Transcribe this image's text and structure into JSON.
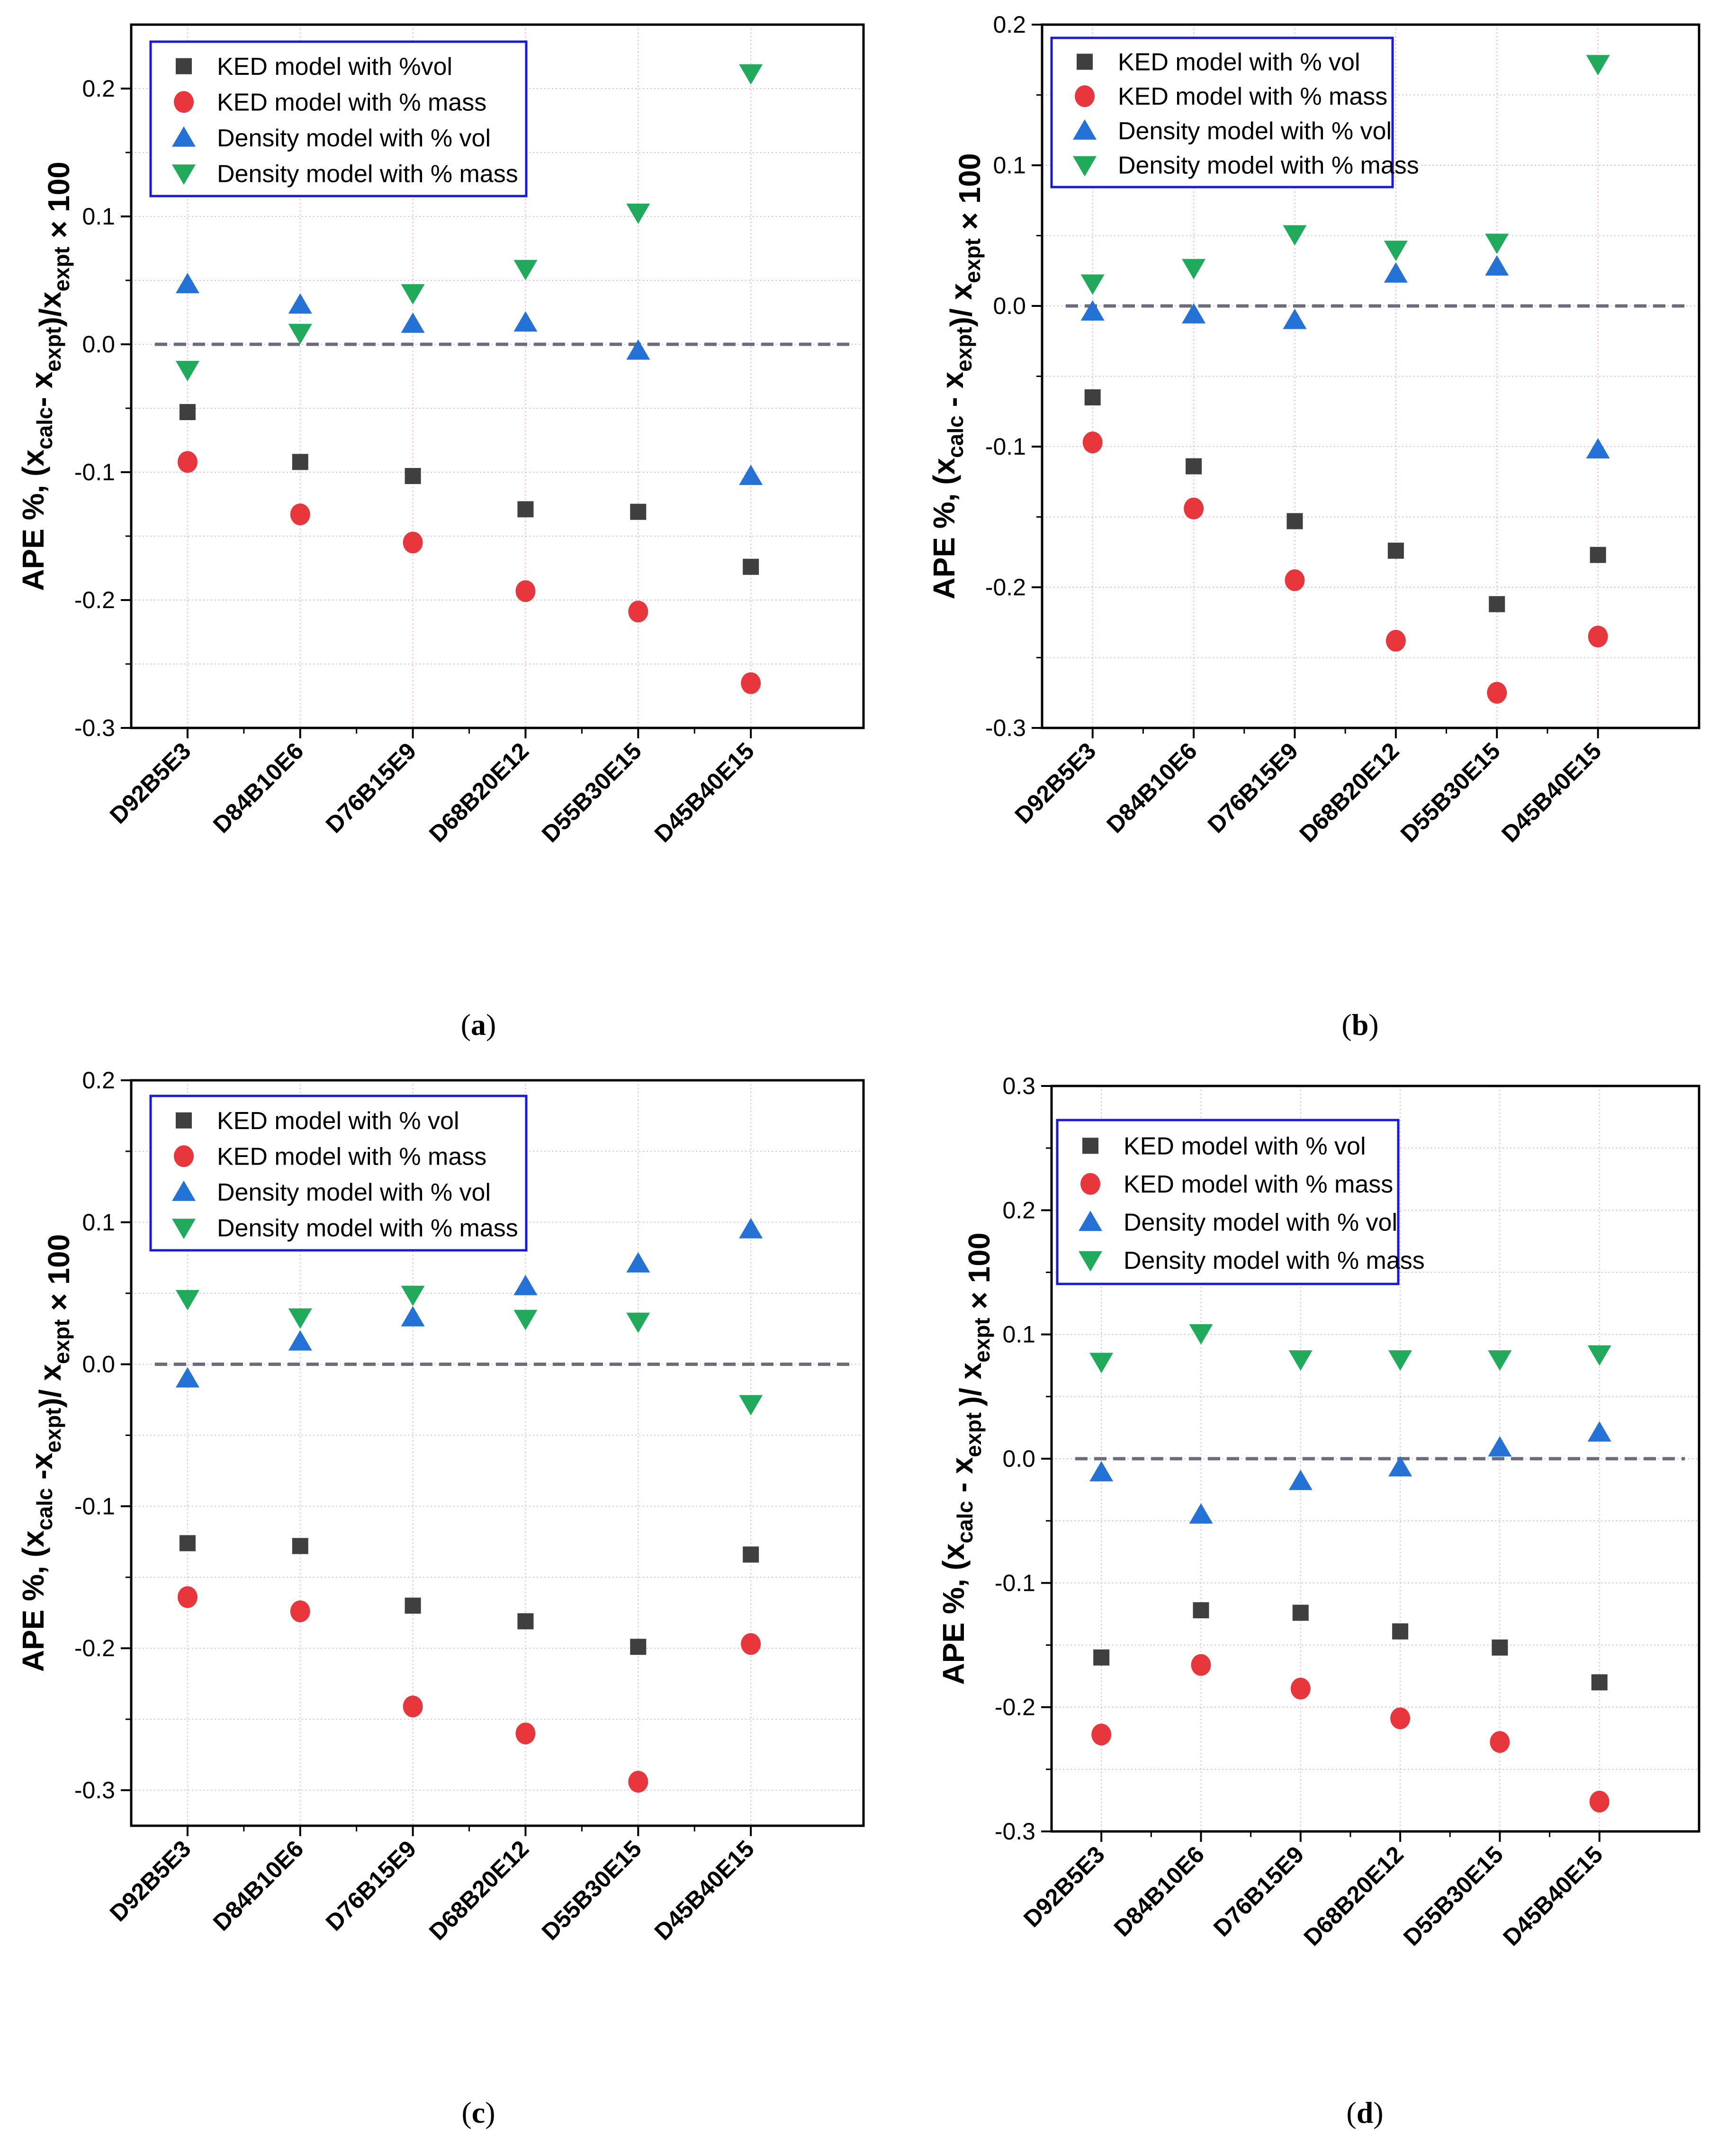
{
  "chart_data": [
    {
      "panel": "(a)",
      "type": "scatter",
      "categories": [
        "D92B5E3",
        "D84B10E6",
        "D76B15E9",
        "D68B20E12",
        "D55B30E15",
        "D45B40E15"
      ],
      "ylim": [
        -0.3,
        0.25
      ],
      "yticks": [
        -0.3,
        -0.2,
        -0.1,
        0.0,
        0.1,
        0.2
      ],
      "ytick_labels": [
        "-0.3",
        "-0.2",
        "-0.1",
        "0.0",
        "0.1",
        "0.2"
      ],
      "ylabel_parts": [
        "APE %, (",
        "x",
        "calc",
        "- ",
        "x",
        "expt",
        ")/",
        "x",
        "expt",
        " × 100"
      ],
      "legend_location": "top-left",
      "series": [
        {
          "name": "KED model with %vol",
          "marker": "square",
          "color": "#3f3f3f",
          "values": [
            -0.053,
            -0.092,
            -0.103,
            -0.129,
            -0.131,
            -0.174
          ]
        },
        {
          "name": "KED model with % mass",
          "marker": "circle",
          "color": "#e8373c",
          "values": [
            -0.092,
            -0.133,
            -0.155,
            -0.193,
            -0.209,
            -0.265
          ]
        },
        {
          "name": "Density model with % vol",
          "marker": "triangle-up",
          "color": "#2472d6",
          "values": [
            0.047,
            0.031,
            0.016,
            0.017,
            -0.005,
            -0.103
          ]
        },
        {
          "name": "Density model with % mass",
          "marker": "triangle-down",
          "color": "#22aa5c",
          "values": [
            -0.02,
            0.009,
            0.04,
            0.059,
            0.103,
            0.212
          ]
        }
      ]
    },
    {
      "panel": "(b)",
      "type": "scatter",
      "categories": [
        "D92B5E3",
        "D84B10E6",
        "D76B15E9",
        "D68B20E12",
        "D55B30E15",
        "D45B40E15"
      ],
      "ylim": [
        -0.3,
        0.2
      ],
      "yticks": [
        -0.3,
        -0.2,
        -0.1,
        0.0,
        0.1,
        0.2
      ],
      "ytick_labels": [
        "-0.3",
        "-0.2",
        "-0.1",
        "0.0",
        "0.1",
        "0.2"
      ],
      "ylabel_parts": [
        "APE %, (",
        "x",
        "calc",
        " - ",
        "x",
        "expt",
        ")/ ",
        "x",
        "expt",
        " × 100"
      ],
      "legend_location": "top-left",
      "series": [
        {
          "name": "KED model with % vol",
          "marker": "square",
          "color": "#3f3f3f",
          "values": [
            -0.065,
            -0.114,
            -0.153,
            -0.174,
            -0.212,
            -0.177
          ]
        },
        {
          "name": "KED model with % mass",
          "marker": "circle",
          "color": "#e8373c",
          "values": [
            -0.097,
            -0.144,
            -0.195,
            -0.238,
            -0.275,
            -0.235
          ]
        },
        {
          "name": "Density model with % vol",
          "marker": "triangle-up",
          "color": "#2472d6",
          "values": [
            -0.004,
            -0.006,
            -0.01,
            0.023,
            0.028,
            -0.102
          ]
        },
        {
          "name": "Density model with % mass",
          "marker": "triangle-down",
          "color": "#22aa5c",
          "values": [
            0.016,
            0.027,
            0.051,
            0.04,
            0.045,
            0.172
          ]
        }
      ]
    },
    {
      "panel": "(c)",
      "type": "scatter",
      "categories": [
        "D92B5E3",
        "D84B10E6",
        "D76B15E9",
        "D68B20E12",
        "D55B30E15",
        "D45B40E15"
      ],
      "ylim": [
        -0.325,
        0.2
      ],
      "yticks": [
        -0.3,
        -0.2,
        -0.1,
        0.0,
        0.1,
        0.2
      ],
      "ytick_labels": [
        "-0.3",
        "-0.2",
        "-0.1",
        "0.0",
        "0.1",
        "0.2"
      ],
      "ylabel_parts": [
        "APE %, (",
        "x",
        "calc",
        " -",
        "x",
        "expt",
        ")/ ",
        "x",
        "expt",
        " × 100"
      ],
      "legend_location": "top-left",
      "series": [
        {
          "name": "KED model with % vol",
          "marker": "square",
          "color": "#3f3f3f",
          "values": [
            -0.126,
            -0.128,
            -0.17,
            -0.181,
            -0.199,
            -0.134
          ]
        },
        {
          "name": "KED model with % mass",
          "marker": "circle",
          "color": "#e8373c",
          "values": [
            -0.164,
            -0.174,
            -0.241,
            -0.26,
            -0.294,
            -0.197
          ]
        },
        {
          "name": "Density model with % vol",
          "marker": "triangle-up",
          "color": "#2472d6",
          "values": [
            -0.01,
            0.016,
            0.033,
            0.055,
            0.071,
            0.095
          ]
        },
        {
          "name": "Density model with % mass",
          "marker": "triangle-down",
          "color": "#22aa5c",
          "values": [
            0.046,
            0.033,
            0.049,
            0.032,
            0.03,
            -0.028
          ]
        }
      ]
    },
    {
      "panel": "(d)",
      "type": "scatter",
      "categories": [
        "D92B5E3",
        "D84B10E6",
        "D76B15E9",
        "D68B20E12",
        "D55B30E15",
        "D45B40E15"
      ],
      "ylim": [
        -0.3,
        0.3
      ],
      "yticks": [
        -0.3,
        -0.2,
        -0.1,
        0.0,
        0.1,
        0.2,
        0.3
      ],
      "ytick_labels": [
        "-0.3",
        "-0.2",
        "-0.1",
        "0.0",
        "0.1",
        "0.2",
        "0.3"
      ],
      "ylabel_parts": [
        "APE %, (",
        "x",
        "calc",
        " - ",
        "x",
        "expt ",
        ")/ ",
        "x",
        "expt",
        " × 100"
      ],
      "legend_location": "top-left",
      "series": [
        {
          "name": "KED model with % vol",
          "marker": "square",
          "color": "#3f3f3f",
          "values": [
            -0.16,
            -0.122,
            -0.124,
            -0.139,
            -0.152,
            -0.18
          ]
        },
        {
          "name": "KED model with % mass",
          "marker": "circle",
          "color": "#e8373c",
          "values": [
            -0.222,
            -0.166,
            -0.185,
            -0.209,
            -0.228,
            -0.276
          ]
        },
        {
          "name": "Density model with % vol",
          "marker": "triangle-up",
          "color": "#2472d6",
          "values": [
            -0.011,
            -0.045,
            -0.018,
            -0.007,
            0.009,
            0.021
          ]
        },
        {
          "name": "Density model with % mass",
          "marker": "triangle-down",
          "color": "#22aa5c",
          "values": [
            0.078,
            0.101,
            0.08,
            0.08,
            0.08,
            0.084
          ]
        }
      ]
    }
  ],
  "colors": {
    "zero_line": "#6b6b7b",
    "grid_vertical": "#f2b8c6",
    "grid_horizontal": "#c8c4ec",
    "legend_border": "#1a1ad6",
    "axis": "#000000"
  }
}
